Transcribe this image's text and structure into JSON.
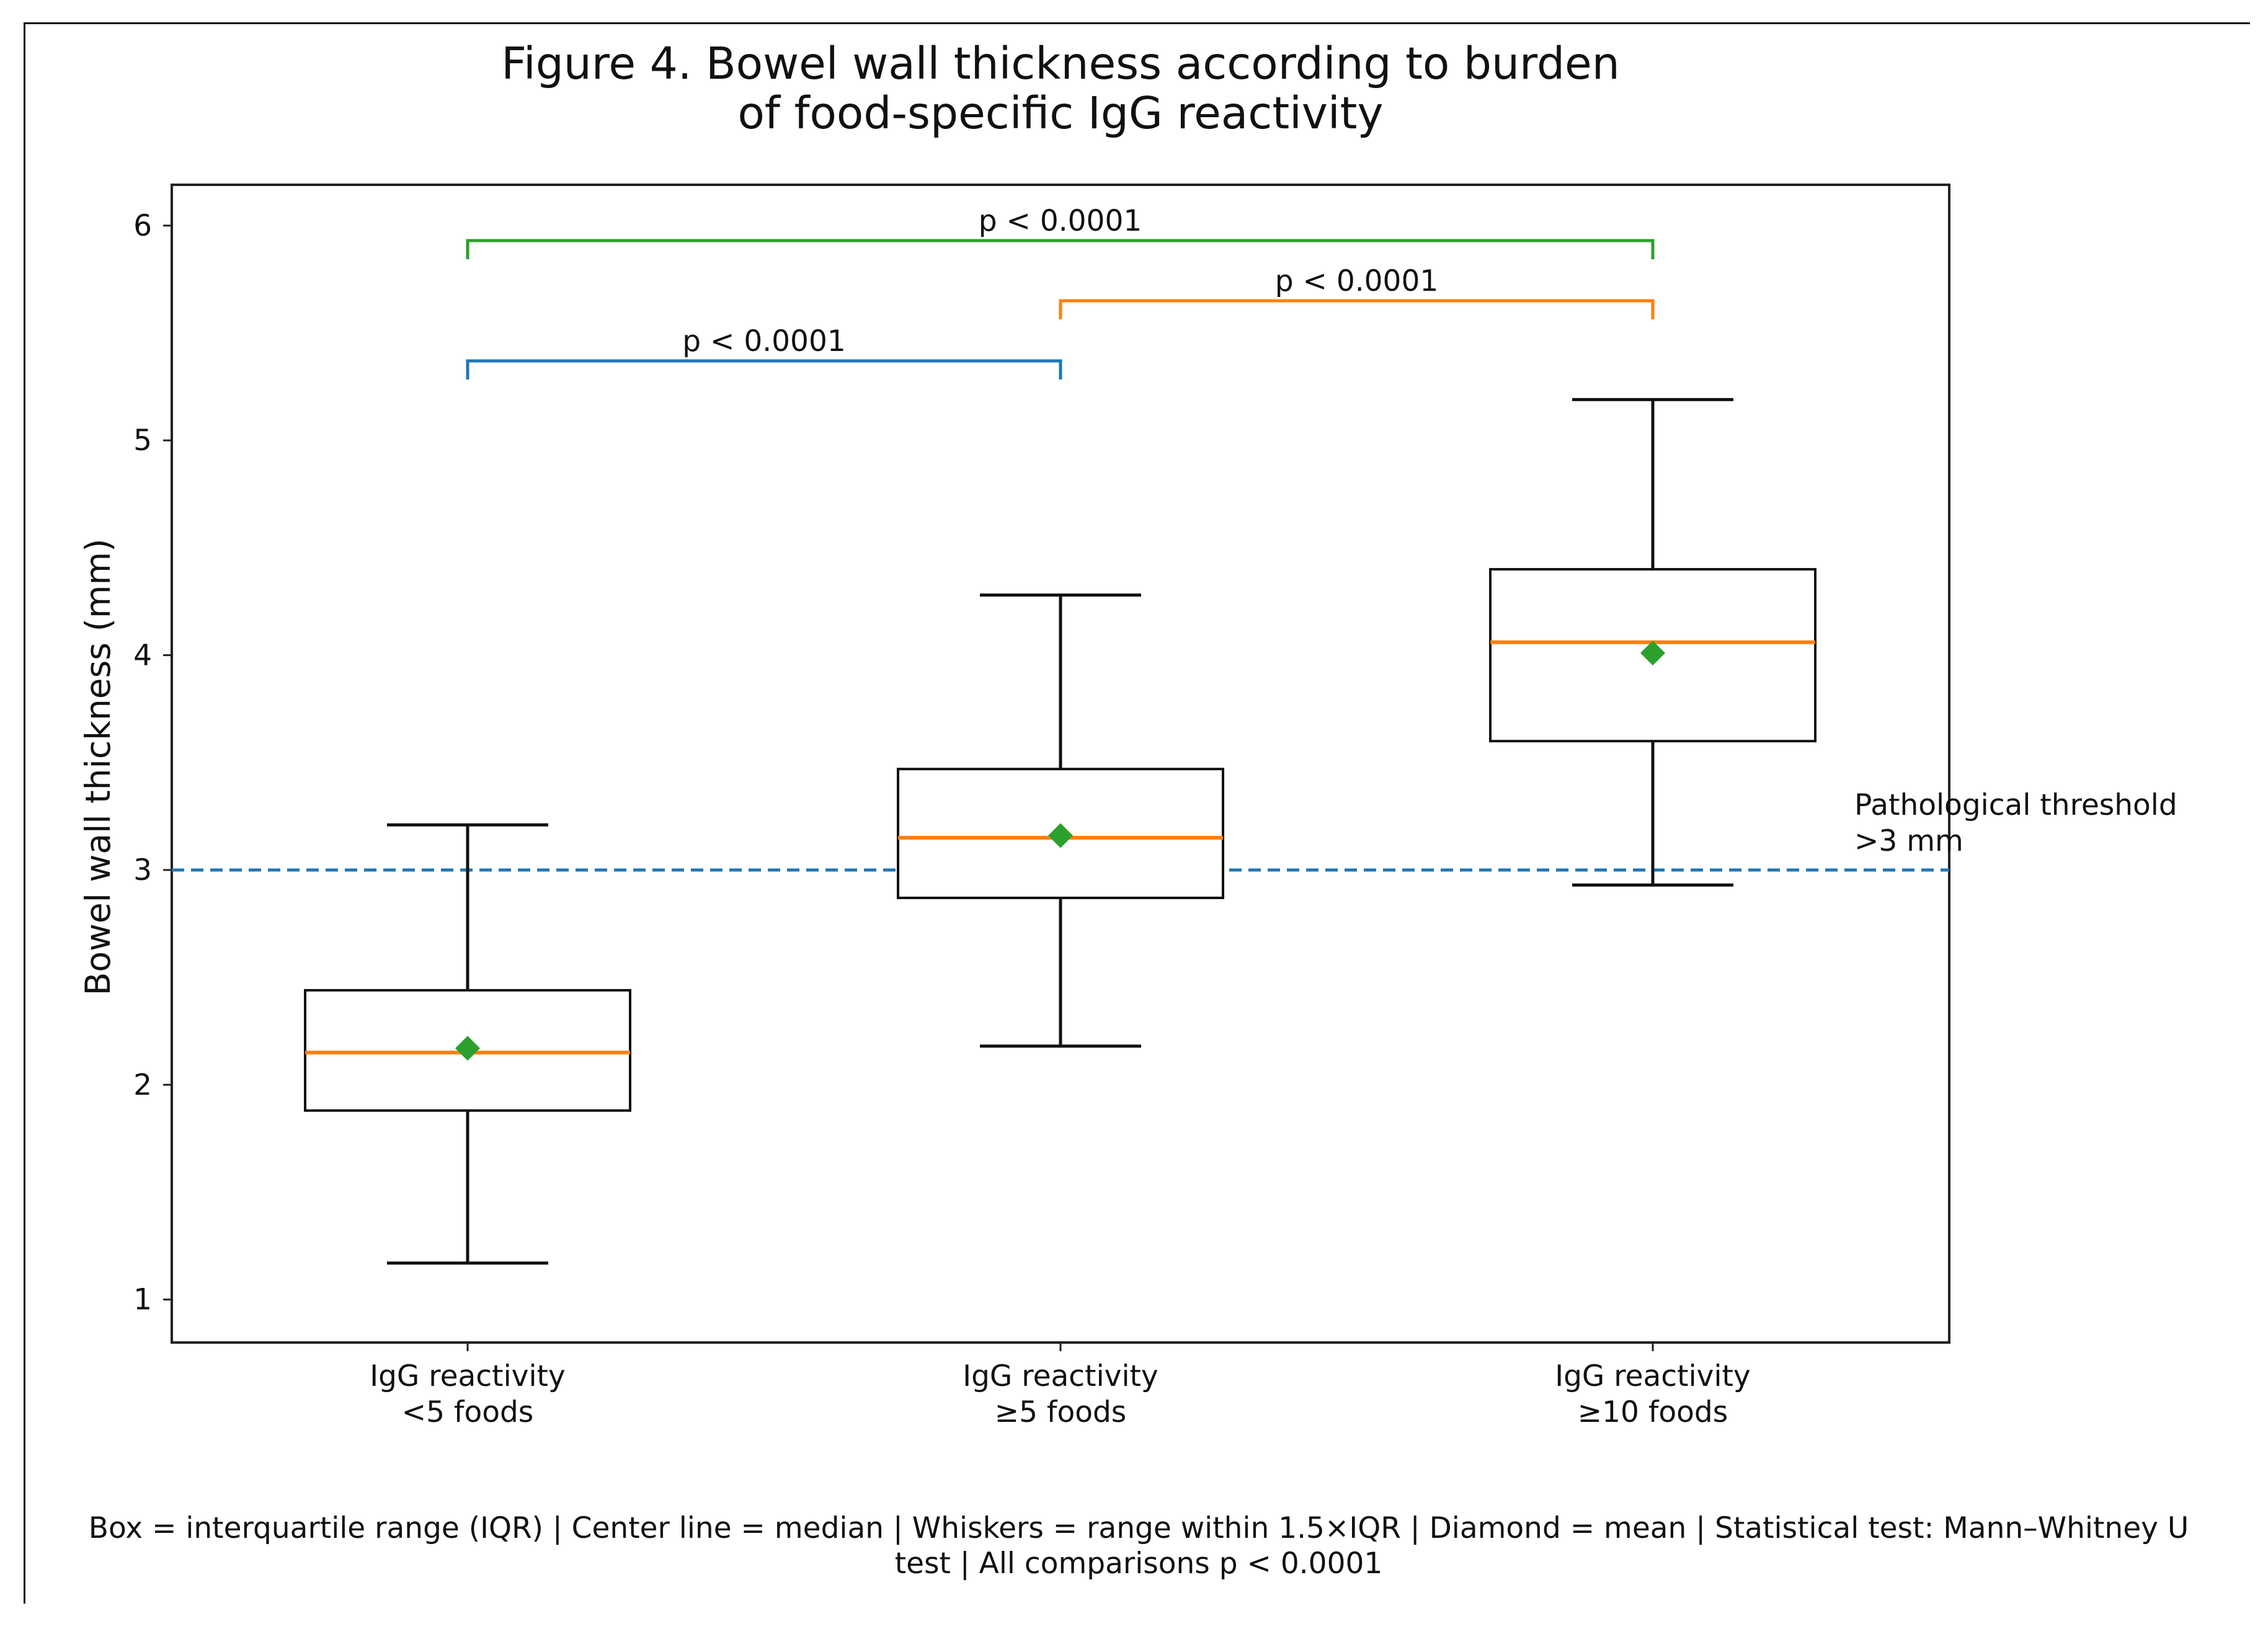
{
  "chart_data": {
    "type": "box",
    "title_lines": [
      "Figure 4. Bowel wall thickness according to burden",
      "of food-specific IgG reactivity"
    ],
    "xlabel": "",
    "ylabel": "Bowel wall thickness (mm)",
    "ylim": [
      0.8,
      6.19
    ],
    "yticks": [
      1,
      2,
      3,
      4,
      5,
      6
    ],
    "grid": false,
    "categories": [
      [
        "IgG reactivity",
        "<5 foods"
      ],
      [
        "IgG reactivity",
        "≥5 foods"
      ],
      [
        "IgG reactivity",
        "≥10 foods"
      ]
    ],
    "boxes": [
      {
        "whisker_low": 1.17,
        "q1": 1.88,
        "median": 2.15,
        "q3": 2.44,
        "whisker_high": 3.21,
        "mean": 2.17
      },
      {
        "whisker_low": 2.18,
        "q1": 2.87,
        "median": 3.15,
        "q3": 3.47,
        "whisker_high": 4.28,
        "mean": 3.16
      },
      {
        "whisker_low": 2.93,
        "q1": 3.6,
        "median": 4.06,
        "q3": 4.4,
        "whisker_high": 5.19,
        "mean": 4.01
      }
    ],
    "threshold": {
      "value": 3.0,
      "label_lines": [
        "Pathological threshold",
        ">3 mm"
      ],
      "color": "#1f77b4"
    },
    "comparisons": [
      {
        "from": 0,
        "to": 1,
        "y": 5.37,
        "label": "p < 0.0001",
        "color": "#1f77b4"
      },
      {
        "from": 1,
        "to": 2,
        "y": 5.65,
        "label": "p < 0.0001",
        "color": "#ff7f0e"
      },
      {
        "from": 0,
        "to": 2,
        "y": 5.93,
        "label": "p < 0.0001",
        "color": "#2ca02c"
      }
    ],
    "colors": {
      "box": "#111111",
      "median": "#ff7f0e",
      "mean": "#2ca02c",
      "whisker": "#111111"
    },
    "caption_lines": [
      "Box = interquartile range (IQR) | Center line = median | Whiskers = range within 1.5×IQR | Diamond = mean | Statistical test: Mann–Whitney U",
      "test | All comparisons p < 0.0001"
    ]
  }
}
